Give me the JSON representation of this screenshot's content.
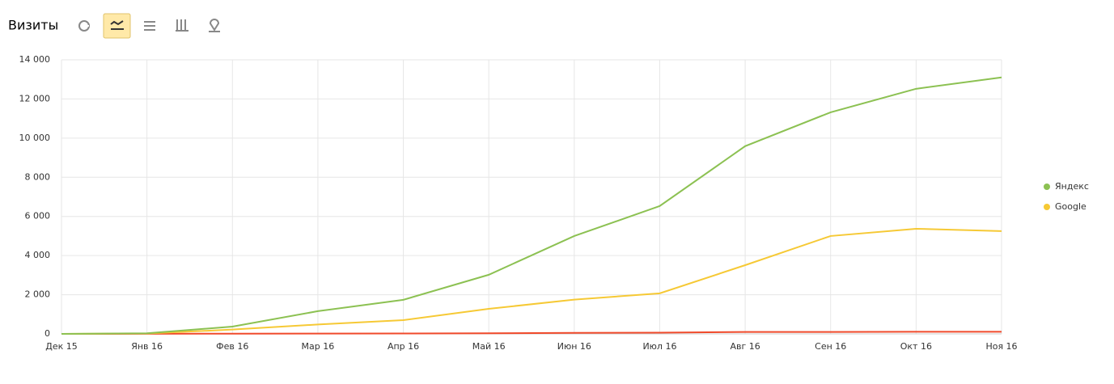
{
  "chart_data": {
    "type": "line",
    "title": "Визиты",
    "categories": [
      "Дек 15",
      "Янв 16",
      "Фев 16",
      "Мар 16",
      "Апр 16",
      "Май 16",
      "Июн 16",
      "Июл 16",
      "Авг 16",
      "Сен 16",
      "Окт 16",
      "Ноя 16"
    ],
    "series": [
      {
        "name": "Яндекс",
        "color": "#8cc152",
        "values": [
          0,
          30,
          370,
          1160,
          1740,
          3020,
          5000,
          6530,
          9590,
          11320,
          12520,
          13100
        ]
      },
      {
        "name": "Google",
        "color": "#f6c935",
        "values": [
          0,
          20,
          220,
          480,
          700,
          1280,
          1750,
          2070,
          3510,
          5000,
          5370,
          5250
        ]
      },
      {
        "color": "#f04a2b",
        "values": [
          0,
          5,
          10,
          15,
          20,
          30,
          50,
          60,
          100,
          100,
          110,
          110
        ]
      }
    ],
    "ylim": [
      0,
      14000
    ],
    "yticks": [
      0,
      {
        "value": 2000,
        "label": "2 000"
      },
      {
        "value": 4000,
        "label": "4 000"
      },
      {
        "value": 6000,
        "label": "6 000"
      },
      {
        "value": 8000,
        "label": "8 000"
      },
      {
        "value": 10000,
        "label": "10 000"
      },
      {
        "value": 12000,
        "label": "12 000"
      },
      {
        "value": 14000,
        "label": "14 000"
      }
    ],
    "grid": true,
    "legend": "right"
  }
}
